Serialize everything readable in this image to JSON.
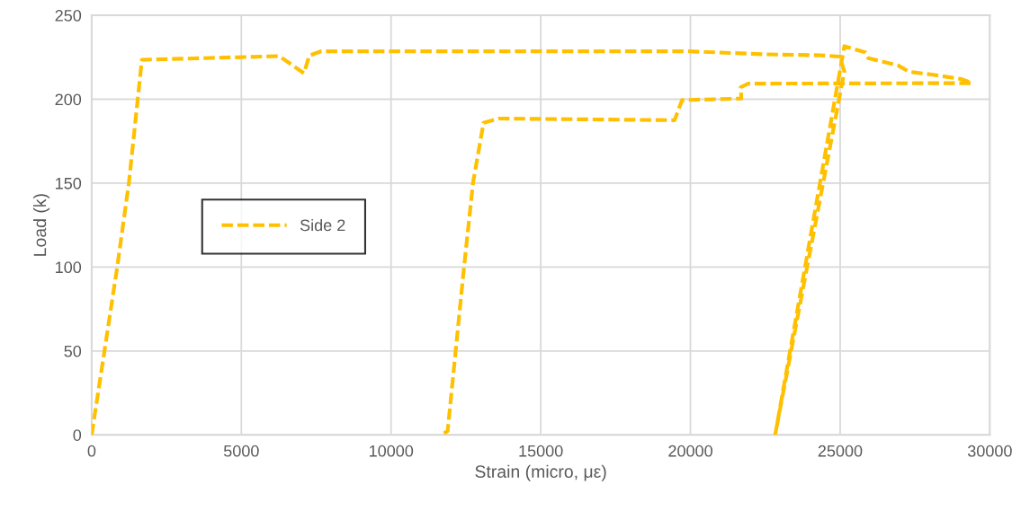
{
  "chart_data": {
    "type": "line",
    "xlabel": "Strain (micro, με)",
    "ylabel": "Load (k)",
    "xlim": [
      0,
      30000
    ],
    "xticks": [
      0,
      5000,
      10000,
      15000,
      20000,
      25000,
      30000
    ],
    "ylim": [
      0,
      250
    ],
    "yticks": [
      0,
      50,
      100,
      150,
      200,
      250
    ],
    "grid": true,
    "legend": "center left",
    "marker": "none",
    "line_style": "dashed",
    "series": [
      {
        "name": "Side 2",
        "color": "#ffc000",
        "x": [
          0,
          843,
          1245,
          1677,
          6265,
          7090,
          7270,
          7670,
          19910,
          22430,
          24340,
          24990,
          25140,
          22830,
          25140,
          25840,
          25940,
          26950,
          27300,
          28050,
          29060,
          29400,
          21930,
          21680,
          21700,
          19720,
          19470,
          13590,
          13090,
          12740,
          12440,
          11890,
          11690
        ],
        "values": [
          0,
          98.7,
          150.4,
          223.5,
          225.7,
          215.5,
          226,
          228.6,
          228.6,
          226.8,
          226.2,
          225.4,
          216.4,
          0,
          231.6,
          228,
          224.5,
          220,
          216.4,
          214.7,
          212,
          209.6,
          209.3,
          207.2,
          200.4,
          199.5,
          187.5,
          188.5,
          186,
          150.4,
          100.4,
          2.3,
          0
        ]
      }
    ]
  }
}
